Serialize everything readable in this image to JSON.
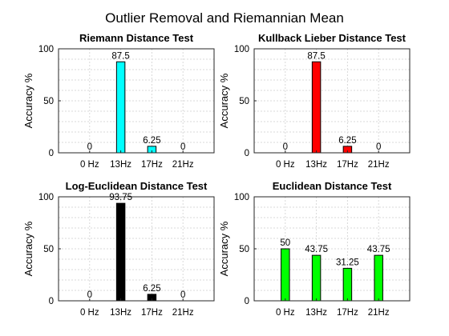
{
  "figure": {
    "title": "Outlier Removal and Riemannian Mean"
  },
  "chart_data": [
    {
      "type": "bar",
      "title": "Riemann Distance Test",
      "ylabel": "Accuracy %",
      "categories": [
        "0 Hz",
        "13Hz",
        "17Hz",
        "21Hz"
      ],
      "values": [
        0,
        87.5,
        6.25,
        0
      ],
      "value_labels": [
        "0",
        "87.5",
        "6.25",
        "0"
      ],
      "ylim": [
        0,
        100
      ],
      "yticks": [
        "0",
        "50",
        "100"
      ],
      "grid": true,
      "color": "#00ffff"
    },
    {
      "type": "bar",
      "title": "Kullback Lieber Distance Test",
      "ylabel": "Accuracy %",
      "categories": [
        "0 Hz",
        "13Hz",
        "17Hz",
        "21Hz"
      ],
      "values": [
        0,
        87.5,
        6.25,
        0
      ],
      "value_labels": [
        "0",
        "87.5",
        "6.25",
        "0"
      ],
      "ylim": [
        0,
        100
      ],
      "yticks": [
        "0",
        "50",
        "100"
      ],
      "grid": true,
      "color": "#ff0000"
    },
    {
      "type": "bar",
      "title": "Log-Euclidean Distance Test",
      "ylabel": "Accuracy %",
      "categories": [
        "0 Hz",
        "13Hz",
        "17Hz",
        "21Hz"
      ],
      "values": [
        0,
        93.75,
        6.25,
        0
      ],
      "value_labels": [
        "0",
        "93.75",
        "6.25",
        "0"
      ],
      "ylim": [
        0,
        100
      ],
      "yticks": [
        "0",
        "50",
        "100"
      ],
      "grid": true,
      "color": "#000000"
    },
    {
      "type": "bar",
      "title": "Euclidean Distance Test",
      "ylabel": "Accuracy %",
      "categories": [
        "0 Hz",
        "13Hz",
        "17Hz",
        "21Hz"
      ],
      "values": [
        50,
        43.75,
        31.25,
        43.75
      ],
      "value_labels": [
        "50",
        "43.75",
        "31.25",
        "43.75"
      ],
      "ylim": [
        0,
        100
      ],
      "yticks": [
        "0",
        "50",
        "100"
      ],
      "grid": true,
      "color": "#00ff00"
    }
  ]
}
